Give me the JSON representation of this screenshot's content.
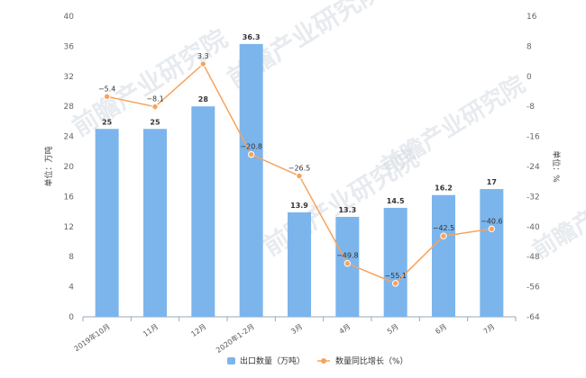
{
  "chart_data": {
    "type": "bar",
    "categories": [
      "2019年10月",
      "11月",
      "12月",
      "2020年1-2月",
      "3月",
      "4月",
      "5月",
      "6月",
      "7月"
    ],
    "series": [
      {
        "name": "出口数量（万吨）",
        "type": "bar",
        "axis": "left",
        "color": "#7cb5ec",
        "values": [
          25,
          25,
          28,
          36.3,
          13.9,
          13.3,
          14.5,
          16.2,
          17
        ]
      },
      {
        "name": "数量同比增长（%）",
        "type": "line",
        "axis": "right",
        "color": "#f7a35c",
        "values": [
          -5.4,
          -8.1,
          3.3,
          -20.8,
          -26.5,
          -49.8,
          -55.1,
          -42.5,
          -40.6
        ]
      }
    ],
    "ylabel_left": "单位：万吨",
    "ylabel_right": "单位：%",
    "ylim_left": [
      0,
      40
    ],
    "ylim_right": [
      -64,
      16
    ],
    "yticks_left": [
      0,
      4,
      8,
      12,
      16,
      20,
      24,
      28,
      32,
      36,
      40
    ],
    "yticks_right": [
      -64,
      -56,
      -48,
      -40,
      -32,
      -24,
      -16,
      -8,
      0,
      8,
      16
    ],
    "bar_labels": [
      "25",
      "25",
      "28",
      "36.3",
      "13.9",
      "13.3",
      "14.5",
      "16.2",
      "17"
    ],
    "line_labels": [
      "−5.4",
      "−8.1",
      "3.3",
      "−20.8",
      "−26.5",
      "−49.8",
      "−55.1",
      "−42.5",
      "−40.6"
    ],
    "grid": false,
    "legend_position": "bottom"
  },
  "watermark": "前瞻产业研究院"
}
